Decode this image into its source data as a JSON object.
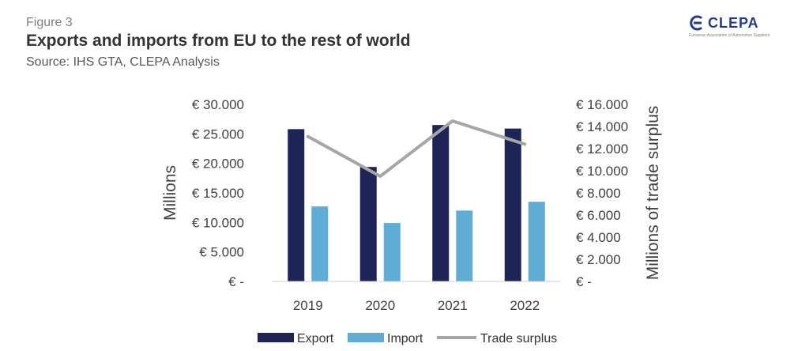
{
  "header": {
    "figure_label": "Figure 3",
    "title": "Exports and imports from EU to the rest of world",
    "source": "Source: IHS GTA, CLEPA Analysis"
  },
  "logo": {
    "name": "CLEPA",
    "tagline": "European Association of Automotive Suppliers",
    "icon": "clepa-logo-mark",
    "color": "#253a8a"
  },
  "chart_data": {
    "type": "bar",
    "categories": [
      "2019",
      "2020",
      "2021",
      "2022"
    ],
    "series": [
      {
        "name": "Export",
        "type": "bar",
        "axis": "left",
        "color": "#1f2456",
        "values": [
          25800,
          19400,
          26500,
          25900
        ]
      },
      {
        "name": "Import",
        "type": "bar",
        "axis": "left",
        "color": "#5fadd5",
        "values": [
          12700,
          9900,
          12000,
          13500
        ]
      },
      {
        "name": "Trade surplus",
        "type": "line",
        "axis": "right",
        "color": "#a6a6a6",
        "values": [
          13100,
          9500,
          14500,
          12400
        ]
      }
    ],
    "y_left": {
      "label": "Millions",
      "ylim": [
        0,
        30000
      ],
      "ticks": [
        0,
        5000,
        10000,
        15000,
        20000,
        25000,
        30000
      ],
      "tick_labels": [
        "€ -",
        "€ 5.000",
        "€ 10.000",
        "€ 15.000",
        "€ 20.000",
        "€ 25.000",
        "€ 30.000"
      ]
    },
    "y_right": {
      "label": "Millions of trade surplus",
      "ylim": [
        0,
        16000
      ],
      "ticks": [
        0,
        2000,
        4000,
        6000,
        8000,
        10000,
        12000,
        14000,
        16000
      ],
      "tick_labels": [
        "€ -",
        "€ 2.000",
        "€ 4.000",
        "€ 6.000",
        "€ 8.000",
        "€ 10.000",
        "€ 12.000",
        "€ 14.000",
        "€ 16.000"
      ]
    },
    "grid": false,
    "legend_position": "bottom"
  }
}
